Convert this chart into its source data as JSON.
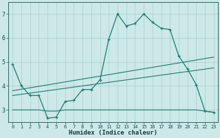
{
  "title": "",
  "xlabel": "Humidex (Indice chaleur)",
  "bg_color": "#cce8e8",
  "line_color": "#1a7a6e",
  "grid_color": "#aacece",
  "xlim": [
    -0.5,
    23.5
  ],
  "ylim": [
    2.5,
    7.5
  ],
  "yticks": [
    3,
    4,
    5,
    6,
    7
  ],
  "xticks": [
    0,
    1,
    2,
    3,
    4,
    5,
    6,
    7,
    8,
    9,
    10,
    11,
    12,
    13,
    14,
    15,
    16,
    17,
    18,
    19,
    20,
    21,
    22,
    23
  ],
  "main_x": [
    0,
    1,
    2,
    3,
    4,
    5,
    6,
    7,
    8,
    9,
    10,
    11,
    12,
    13,
    14,
    15,
    16,
    17,
    18,
    19,
    20,
    21,
    22,
    23
  ],
  "main_y": [
    4.9,
    4.0,
    3.6,
    3.6,
    2.65,
    2.7,
    3.35,
    3.4,
    3.85,
    3.85,
    4.25,
    5.95,
    7.0,
    6.5,
    6.6,
    7.0,
    6.65,
    6.4,
    6.35,
    5.25,
    4.7,
    4.05,
    2.95,
    2.9
  ],
  "flat_x": [
    0,
    1,
    2,
    3,
    4,
    5,
    6,
    7,
    8,
    9,
    10,
    11,
    12,
    13,
    14,
    15,
    16,
    17,
    18,
    19,
    20,
    21,
    22,
    23
  ],
  "flat_y": [
    3.0,
    3.0,
    3.0,
    3.0,
    2.95,
    2.95,
    3.0,
    3.0,
    3.0,
    3.0,
    3.0,
    3.0,
    3.0,
    3.0,
    3.0,
    3.0,
    3.0,
    3.0,
    3.0,
    3.0,
    3.0,
    3.0,
    2.95,
    2.9
  ],
  "trend1_x": [
    0,
    23
  ],
  "trend1_y": [
    3.8,
    5.2
  ],
  "trend2_x": [
    0,
    23
  ],
  "trend2_y": [
    3.6,
    4.75
  ]
}
